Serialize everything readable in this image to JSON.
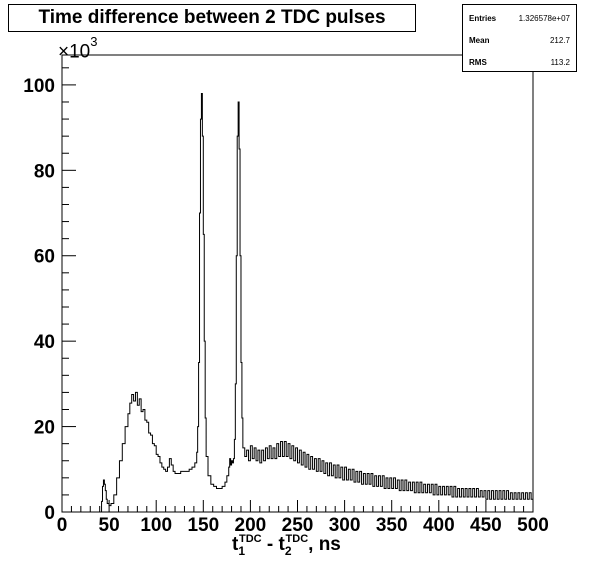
{
  "chart_data": {
    "type": "histogram",
    "title": "Time difference between 2 TDC pulses",
    "xlabel": {
      "main1": "t",
      "sub1": "1",
      "sup1": "TDC",
      "sep": " - ",
      "main2": "t",
      "sub2": "2",
      "sup2": "TDC",
      "suffix": ", ns"
    },
    "ylabel": "",
    "y_multiplier": {
      "base": "×10",
      "exponent": "3"
    },
    "xlim": [
      0,
      500
    ],
    "ylim": [
      0,
      107
    ],
    "x_ticks": [
      0,
      50,
      100,
      150,
      200,
      250,
      300,
      350,
      400,
      450,
      500
    ],
    "y_ticks": [
      0,
      20,
      40,
      60,
      80,
      100
    ],
    "grid": false,
    "legend": "none",
    "line_color": "#000000",
    "stats": {
      "entries_label": "Entries",
      "entries_value": "1.326578e+07",
      "mean_label": "Mean",
      "mean_value": "212.7",
      "rms_label": "RMS",
      "rms_value": "113.2"
    },
    "points": [
      [
        0,
        0
      ],
      [
        41,
        0
      ],
      [
        42,
        2.5
      ],
      [
        43,
        6
      ],
      [
        44,
        7.5
      ],
      [
        45,
        6.5
      ],
      [
        46,
        5
      ],
      [
        47,
        3
      ],
      [
        48,
        2
      ],
      [
        50,
        1.5
      ],
      [
        52,
        2
      ],
      [
        55,
        4
      ],
      [
        58,
        8
      ],
      [
        61,
        12
      ],
      [
        64,
        16
      ],
      [
        67,
        20
      ],
      [
        70,
        23
      ],
      [
        72,
        25.5
      ],
      [
        74,
        27.5
      ],
      [
        76,
        26
      ],
      [
        78,
        28
      ],
      [
        80,
        25
      ],
      [
        82,
        26.5
      ],
      [
        84,
        23.5
      ],
      [
        86,
        24
      ],
      [
        88,
        21.5
      ],
      [
        90,
        21
      ],
      [
        92,
        18.5
      ],
      [
        94,
        18
      ],
      [
        96,
        16
      ],
      [
        98,
        15.5
      ],
      [
        100,
        13.5
      ],
      [
        102,
        13
      ],
      [
        104,
        11.5
      ],
      [
        106,
        10.5
      ],
      [
        108,
        10
      ],
      [
        110,
        9.5
      ],
      [
        112,
        10.5
      ],
      [
        114,
        12.5
      ],
      [
        116,
        11
      ],
      [
        118,
        9.5
      ],
      [
        120,
        9
      ],
      [
        123,
        9
      ],
      [
        126,
        9.5
      ],
      [
        129,
        9.5
      ],
      [
        132,
        9.5
      ],
      [
        135,
        10
      ],
      [
        138,
        10.5
      ],
      [
        141,
        11.5
      ],
      [
        143,
        14
      ],
      [
        144,
        20
      ],
      [
        145,
        35
      ],
      [
        146,
        70
      ],
      [
        147,
        92
      ],
      [
        148,
        98
      ],
      [
        149,
        88
      ],
      [
        150,
        65
      ],
      [
        151,
        40
      ],
      [
        152,
        22
      ],
      [
        153,
        13
      ],
      [
        155,
        8.5
      ],
      [
        158,
        6.5
      ],
      [
        161,
        6
      ],
      [
        164,
        5.5
      ],
      [
        167,
        5.5
      ],
      [
        170,
        6
      ],
      [
        173,
        7
      ],
      [
        175,
        8.5
      ],
      [
        177,
        10.5
      ],
      [
        178,
        12.5
      ],
      [
        179,
        11
      ],
      [
        180,
        12
      ],
      [
        181,
        11.5
      ],
      [
        182,
        12.5
      ],
      [
        183,
        17
      ],
      [
        184,
        30
      ],
      [
        185,
        60
      ],
      [
        186,
        88
      ],
      [
        187,
        96
      ],
      [
        188,
        85
      ],
      [
        189,
        60
      ],
      [
        190,
        35
      ],
      [
        191,
        22
      ],
      [
        192,
        15
      ],
      [
        194,
        13
      ],
      [
        196,
        14.5
      ],
      [
        198,
        12
      ],
      [
        200,
        15.5
      ],
      [
        202,
        12.5
      ],
      [
        204,
        15
      ],
      [
        206,
        12
      ],
      [
        208,
        14.5
      ],
      [
        210,
        11.5
      ],
      [
        212,
        14.5
      ],
      [
        214,
        12
      ],
      [
        216,
        15
      ],
      [
        218,
        12.5
      ],
      [
        220,
        15.5
      ],
      [
        222,
        12.5
      ],
      [
        224,
        15
      ],
      [
        226,
        12.5
      ],
      [
        228,
        16
      ],
      [
        230,
        13
      ],
      [
        232,
        16.5
      ],
      [
        234,
        13
      ],
      [
        236,
        16.5
      ],
      [
        238,
        13
      ],
      [
        240,
        16
      ],
      [
        242,
        12.5
      ],
      [
        244,
        15.5
      ],
      [
        246,
        12
      ],
      [
        248,
        15
      ],
      [
        250,
        11.5
      ],
      [
        252,
        14.5
      ],
      [
        254,
        11
      ],
      [
        256,
        14
      ],
      [
        258,
        10.5
      ],
      [
        260,
        13.5
      ],
      [
        262,
        10
      ],
      [
        264,
        13
      ],
      [
        266,
        10
      ],
      [
        268,
        12.5
      ],
      [
        270,
        9.5
      ],
      [
        272,
        12.5
      ],
      [
        274,
        9.5
      ],
      [
        276,
        12
      ],
      [
        278,
        9
      ],
      [
        280,
        11.5
      ],
      [
        282,
        8.5
      ],
      [
        284,
        11.5
      ],
      [
        286,
        8.5
      ],
      [
        288,
        11
      ],
      [
        290,
        8
      ],
      [
        292,
        11
      ],
      [
        294,
        8
      ],
      [
        296,
        10.5
      ],
      [
        298,
        7.5
      ],
      [
        300,
        10.5
      ],
      [
        302,
        7.5
      ],
      [
        304,
        10
      ],
      [
        306,
        7.5
      ],
      [
        308,
        10
      ],
      [
        310,
        7
      ],
      [
        312,
        9.5
      ],
      [
        314,
        7
      ],
      [
        316,
        9.5
      ],
      [
        318,
        6.5
      ],
      [
        320,
        9
      ],
      [
        322,
        6.5
      ],
      [
        324,
        9
      ],
      [
        326,
        6.5
      ],
      [
        328,
        9
      ],
      [
        330,
        6
      ],
      [
        332,
        8.5
      ],
      [
        334,
        6
      ],
      [
        336,
        8.5
      ],
      [
        338,
        6
      ],
      [
        340,
        8.5
      ],
      [
        342,
        5.5
      ],
      [
        344,
        8
      ],
      [
        346,
        5.5
      ],
      [
        348,
        8
      ],
      [
        350,
        5.5
      ],
      [
        352,
        8
      ],
      [
        354,
        5.5
      ],
      [
        356,
        7.5
      ],
      [
        358,
        5
      ],
      [
        360,
        7.5
      ],
      [
        362,
        5
      ],
      [
        364,
        7.5
      ],
      [
        366,
        5
      ],
      [
        368,
        7
      ],
      [
        370,
        5
      ],
      [
        372,
        7
      ],
      [
        374,
        4.5
      ],
      [
        376,
        7
      ],
      [
        378,
        4.5
      ],
      [
        380,
        7
      ],
      [
        382,
        4.5
      ],
      [
        384,
        6.5
      ],
      [
        386,
        4.5
      ],
      [
        388,
        6.5
      ],
      [
        390,
        4.5
      ],
      [
        392,
        6.5
      ],
      [
        394,
        4
      ],
      [
        396,
        6.5
      ],
      [
        398,
        4
      ],
      [
        400,
        6
      ],
      [
        402,
        4
      ],
      [
        404,
        6
      ],
      [
        406,
        4
      ],
      [
        408,
        6
      ],
      [
        410,
        4
      ],
      [
        412,
        6
      ],
      [
        414,
        3.5
      ],
      [
        416,
        6
      ],
      [
        418,
        3.5
      ],
      [
        420,
        5.5
      ],
      [
        422,
        3.5
      ],
      [
        424,
        5.5
      ],
      [
        426,
        3.5
      ],
      [
        428,
        5.5
      ],
      [
        430,
        3.5
      ],
      [
        432,
        5.5
      ],
      [
        434,
        3.5
      ],
      [
        436,
        5.5
      ],
      [
        438,
        3.5
      ],
      [
        440,
        5.5
      ],
      [
        442,
        3.5
      ],
      [
        444,
        5
      ],
      [
        446,
        3.5
      ],
      [
        448,
        5
      ],
      [
        450,
        3
      ],
      [
        452,
        5
      ],
      [
        454,
        3
      ],
      [
        456,
        5
      ],
      [
        458,
        3
      ],
      [
        460,
        5
      ],
      [
        462,
        3
      ],
      [
        464,
        5
      ],
      [
        466,
        3
      ],
      [
        468,
        5
      ],
      [
        470,
        3
      ],
      [
        472,
        5
      ],
      [
        474,
        3
      ],
      [
        476,
        4.5
      ],
      [
        478,
        3
      ],
      [
        480,
        4.5
      ],
      [
        482,
        3
      ],
      [
        484,
        4.5
      ],
      [
        486,
        3
      ],
      [
        488,
        4.5
      ],
      [
        490,
        3
      ],
      [
        492,
        4.5
      ],
      [
        494,
        3
      ],
      [
        496,
        4.5
      ],
      [
        498,
        3
      ],
      [
        500,
        3
      ]
    ]
  }
}
